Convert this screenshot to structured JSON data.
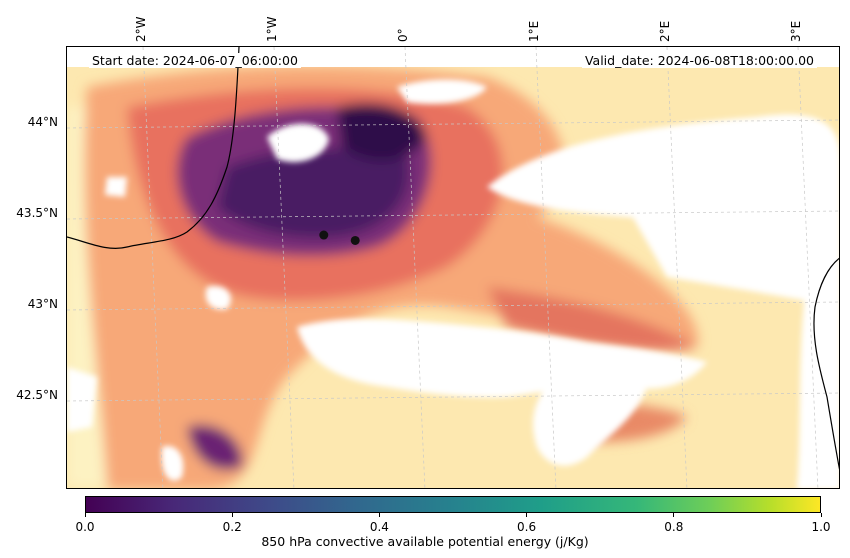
{
  "map": {
    "start_date_text": "Start date: 2024-06-07_06:00:00",
    "valid_date_text": "Valid_date: 2024-06-08T18:00:00.00",
    "lon_ticks": [
      {
        "label": "2°W",
        "lon": -2
      },
      {
        "label": "1°W",
        "lon": -1
      },
      {
        "label": "0°",
        "lon": 0
      },
      {
        "label": "1°E",
        "lon": 1
      },
      {
        "label": "2°E",
        "lon": 2
      },
      {
        "label": "3°E",
        "lon": 3
      }
    ],
    "lat_ticks": [
      {
        "label": "44°N",
        "lat": 44.0
      },
      {
        "label": "43.5°N",
        "lat": 43.5
      },
      {
        "label": "43°N",
        "lat": 43.0
      },
      {
        "label": "42.5°N",
        "lat": 42.5
      }
    ],
    "markers": [
      {
        "name": "point-1",
        "lon": -0.62,
        "lat": 43.39
      },
      {
        "name": "point-2",
        "lon": -0.38,
        "lat": 43.36
      }
    ],
    "colormap": "magma",
    "colors": {
      "coastline": "#000000",
      "marker": "#111111"
    }
  },
  "colorbar": {
    "label": "850 hPa convective available potential energy (j/Kg)",
    "colormap": "viridis",
    "ticks": [
      "0.0",
      "0.2",
      "0.4",
      "0.6",
      "0.8",
      "1.0"
    ],
    "range": [
      0.0,
      1.0
    ]
  }
}
